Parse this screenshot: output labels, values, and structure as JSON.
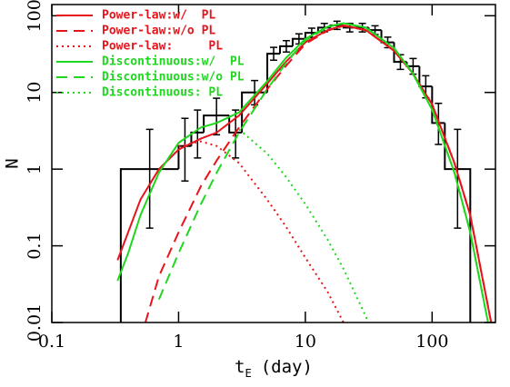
{
  "chart_data": {
    "type": "line",
    "xscale": "log",
    "yscale": "log",
    "xlabel": "t",
    "xlabel_sub": "E",
    "xlabel_unit": "(day)",
    "ylabel": "N",
    "xlim": [
      0.1,
      316
    ],
    "ylim": [
      0.01,
      140
    ],
    "xticks": [
      0.1,
      1,
      10,
      100
    ],
    "yticks": [
      0.01,
      0.1,
      1,
      10,
      100
    ],
    "legend": "upper left",
    "x": [
      0.33,
      0.4,
      0.5,
      0.7,
      1,
      1.5,
      2,
      3,
      5,
      7,
      10,
      15,
      20,
      30,
      50,
      70,
      100,
      150,
      200,
      300
    ],
    "series": [
      {
        "name": "Power-law:w/  PL",
        "color": "#e8141c",
        "dash": "solid",
        "values": [
          0.065,
          0.15,
          0.4,
          1.0,
          1.8,
          2.5,
          3.0,
          5,
          13,
          25,
          45,
          65,
          75,
          65,
          35,
          18,
          7,
          1.2,
          0.25,
          0.008
        ]
      },
      {
        "name": "Power-law:w/o PL",
        "color": "#e8141c",
        "dash": "dashed",
        "values": [
          null,
          null,
          0.006,
          0.04,
          0.15,
          0.6,
          1.3,
          3.5,
          11,
          22,
          43,
          64,
          74,
          65,
          35,
          18,
          7,
          1.2,
          0.25,
          0.008
        ]
      },
      {
        "name": "Power-law:     PL",
        "color": "#e8141c",
        "dash": "dotted",
        "values": [
          null,
          null,
          null,
          null,
          2.0,
          2.3,
          2.0,
          1.2,
          0.4,
          0.18,
          0.07,
          0.025,
          0.01,
          0.003,
          null,
          null,
          null,
          null,
          null,
          null
        ]
      },
      {
        "name": "Discontinuous:w/  PL",
        "color": "#1ed81e",
        "dash": "solid",
        "values": [
          0.035,
          0.08,
          0.25,
          0.9,
          2.2,
          3.5,
          4,
          5.5,
          14,
          28,
          50,
          72,
          80,
          70,
          38,
          18,
          6,
          0.9,
          0.15,
          0.005
        ]
      },
      {
        "name": "Discontinuous:w/o PL",
        "color": "#1ed81e",
        "dash": "dashed",
        "values": [
          null,
          null,
          null,
          0.02,
          0.08,
          0.35,
          0.9,
          3,
          11,
          24,
          48,
          71,
          80,
          70,
          38,
          18,
          6,
          0.9,
          0.15,
          0.005
        ]
      },
      {
        "name": "Discontinuous: PL",
        "color": "#1ed81e",
        "dash": "dotted",
        "values": [
          null,
          null,
          null,
          null,
          null,
          null,
          null,
          3.3,
          1.6,
          0.8,
          0.35,
          0.12,
          0.05,
          0.012,
          0.002,
          null,
          null,
          null,
          null,
          null
        ]
      }
    ],
    "histogram": {
      "color": "#000000",
      "bins": [
        0.35,
        1,
        1.26,
        1.58,
        2.51,
        3.16,
        5.01,
        6.31,
        7.94,
        10,
        12.6,
        15.8,
        20,
        25.1,
        31.6,
        39.8,
        50.1,
        63.1,
        79.4,
        100,
        126,
        200
      ],
      "values": [
        1,
        2,
        3,
        5,
        3,
        10,
        32,
        40,
        50,
        60,
        70,
        75,
        70,
        70,
        65,
        45,
        25,
        22,
        12,
        4,
        1
      ],
      "error_low": [
        0.83,
        1.3,
        1.6,
        2.2,
        1.6,
        3.1,
        5.7,
        6.3,
        7.1,
        7.7,
        8.4,
        8.7,
        8.4,
        8.4,
        8.1,
        6.7,
        5,
        4.7,
        3.5,
        1.9,
        0.83
      ],
      "error_high": [
        2.3,
        2.6,
        2.9,
        3.4,
        2.9,
        4.3,
        6.7,
        7.4,
        8.1,
        8.8,
        9.4,
        9.7,
        9.4,
        9.4,
        9.1,
        7.7,
        6,
        5.7,
        4.5,
        3.2,
        2.3
      ]
    }
  }
}
